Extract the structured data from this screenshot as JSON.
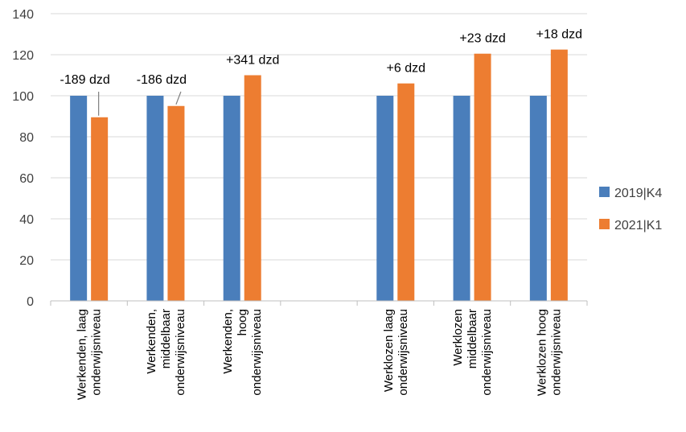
{
  "chart_data": {
    "type": "bar",
    "categories": [
      [
        "Werkenden, laag",
        "onderwijsniveau"
      ],
      [
        "Werkenden,",
        "middelbaar",
        "onderwijsniveau"
      ],
      [
        "Werkenden,",
        "hoog",
        "onderwijsniveau"
      ],
      [],
      [
        "Werklozen laag",
        "onderwijsniveau"
      ],
      [
        "Werklozen",
        "middelbaar",
        "onderwijsniveau"
      ],
      [
        "Werklozen hoog",
        "onderwijsniveau"
      ]
    ],
    "series": [
      {
        "name": "2019|K4",
        "color": "#4a7ebb",
        "values": [
          100,
          100,
          100,
          null,
          100,
          100,
          100
        ]
      },
      {
        "name": "2021|K1",
        "color": "#ed7d31",
        "values": [
          89.5,
          95,
          110,
          null,
          106,
          120.5,
          122.5
        ]
      }
    ],
    "annotations": [
      {
        "category": 0,
        "text": "-189 dzd",
        "leader": true
      },
      {
        "category": 1,
        "text": "-186 dzd",
        "leader": true
      },
      {
        "category": 2,
        "text": "+341 dzd",
        "leader": false
      },
      {
        "category": 4,
        "text": "+6 dzd",
        "leader": false
      },
      {
        "category": 5,
        "text": "+23 dzd",
        "leader": false
      },
      {
        "category": 6,
        "text": "+18 dzd",
        "leader": false
      }
    ],
    "ylim": [
      0,
      140
    ],
    "yticks": [
      "0",
      "20",
      "40",
      "60",
      "80",
      "100",
      "120",
      "140"
    ],
    "grid": true,
    "legend_position": "right",
    "title": "",
    "xlabel": "",
    "ylabel": ""
  }
}
